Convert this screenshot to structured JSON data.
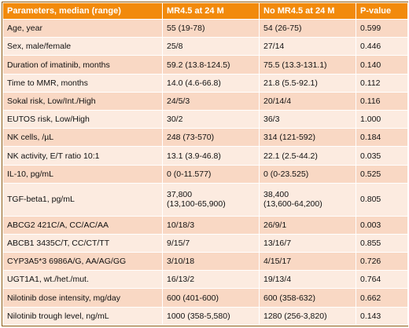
{
  "headers": [
    "Parameters, median (range)",
    "MR4.5 at 24 M",
    "No MR4.5 at 24 M",
    "P-value"
  ],
  "rows": [
    {
      "param": "Age, year",
      "mr45": [
        "55 (19-78)"
      ],
      "no_mr45": [
        "54 (26-75)"
      ],
      "p": "0.599"
    },
    {
      "param": "Sex, male/female",
      "mr45": [
        "25/8"
      ],
      "no_mr45": [
        "27/14"
      ],
      "p": "0.446"
    },
    {
      "param": "Duration of imatinib, months",
      "mr45": [
        "59.2 (13.8-124.5)"
      ],
      "no_mr45": [
        "75.5 (13.3-131.1)"
      ],
      "p": "0.140"
    },
    {
      "param": "Time to MMR, months",
      "mr45": [
        "14.0 (4.6-66.8)"
      ],
      "no_mr45": [
        "21.8 (5.5-92.1)"
      ],
      "p": "0.112"
    },
    {
      "param": "Sokal risk, Low/Int./High",
      "mr45": [
        "24/5/3"
      ],
      "no_mr45": [
        "20/14/4"
      ],
      "p": "0.116"
    },
    {
      "param": "EUTOS risk, Low/High",
      "mr45": [
        "30/2"
      ],
      "no_mr45": [
        "36/3"
      ],
      "p": "1.000"
    },
    {
      "param": "NK cells, /µL",
      "mr45": [
        "248 (73-570)"
      ],
      "no_mr45": [
        "314 (121-592)"
      ],
      "p": "0.184"
    },
    {
      "param": "NK activity, E/T ratio 10:1",
      "mr45": [
        "13.1 (3.9-46.8)"
      ],
      "no_mr45": [
        "22.1 (2.5-44.2)"
      ],
      "p": "0.035"
    },
    {
      "param": "IL-10, pg/mL",
      "mr45": [
        "0 (0-11.577)"
      ],
      "no_mr45": [
        "0 (0-23.525)"
      ],
      "p": "0.525"
    },
    {
      "param": "TGF-beta1, pg/mL",
      "mr45": [
        "37,800",
        "(13,100-65,900)"
      ],
      "no_mr45": [
        "38,400",
        "(13,600-64,200)"
      ],
      "p": "0.805"
    },
    {
      "param": "ABCG2 421C/A, CC/AC/AA",
      "mr45": [
        "10/18/3"
      ],
      "no_mr45": [
        "26/9/1"
      ],
      "p": "0.003"
    },
    {
      "param": "ABCB1 3435C/T, CC/CT/TT",
      "mr45": [
        "9/15/7"
      ],
      "no_mr45": [
        "13/16/7"
      ],
      "p": "0.855"
    },
    {
      "param": "CYP3A5*3 6986A/G, AA/AG/GG",
      "mr45": [
        "3/10/18"
      ],
      "no_mr45": [
        "4/15/17"
      ],
      "p": "0.726"
    },
    {
      "param": "UGT1A1, wt./het./mut.",
      "mr45": [
        "16/13/2"
      ],
      "no_mr45": [
        "19/13/4"
      ],
      "p": "0.764"
    },
    {
      "param": "Nilotinib dose intensity, mg/day",
      "mr45": [
        "600 (401-600)"
      ],
      "no_mr45": [
        "600 (358-632)"
      ],
      "p": "0.662"
    },
    {
      "param": "Nilotinib trough level, ng/mL",
      "mr45": [
        "1000 (358-5,580)"
      ],
      "no_mr45": [
        "1280 (256-3,820)"
      ],
      "p": "0.143"
    }
  ]
}
